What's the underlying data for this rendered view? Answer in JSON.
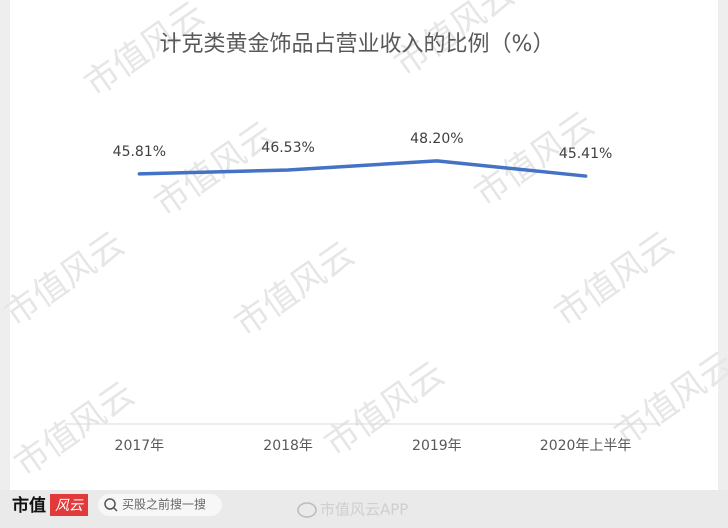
{
  "chart_data": {
    "type": "line",
    "title": "计克类黄金饰品占营业收入的比例（%）",
    "categories": [
      "2017年",
      "2018年",
      "2019年",
      "2020年上半年"
    ],
    "values": [
      45.81,
      46.53,
      48.2,
      45.41
    ],
    "value_labels": [
      "45.81%",
      "46.53%",
      "48.20%",
      "45.41%"
    ],
    "color": "#4472c4"
  },
  "watermark": "市值风云",
  "footer": {
    "logo_left": "市值",
    "logo_right": "风云",
    "search": "买股之前搜一搜",
    "account": "市值风云APP"
  }
}
